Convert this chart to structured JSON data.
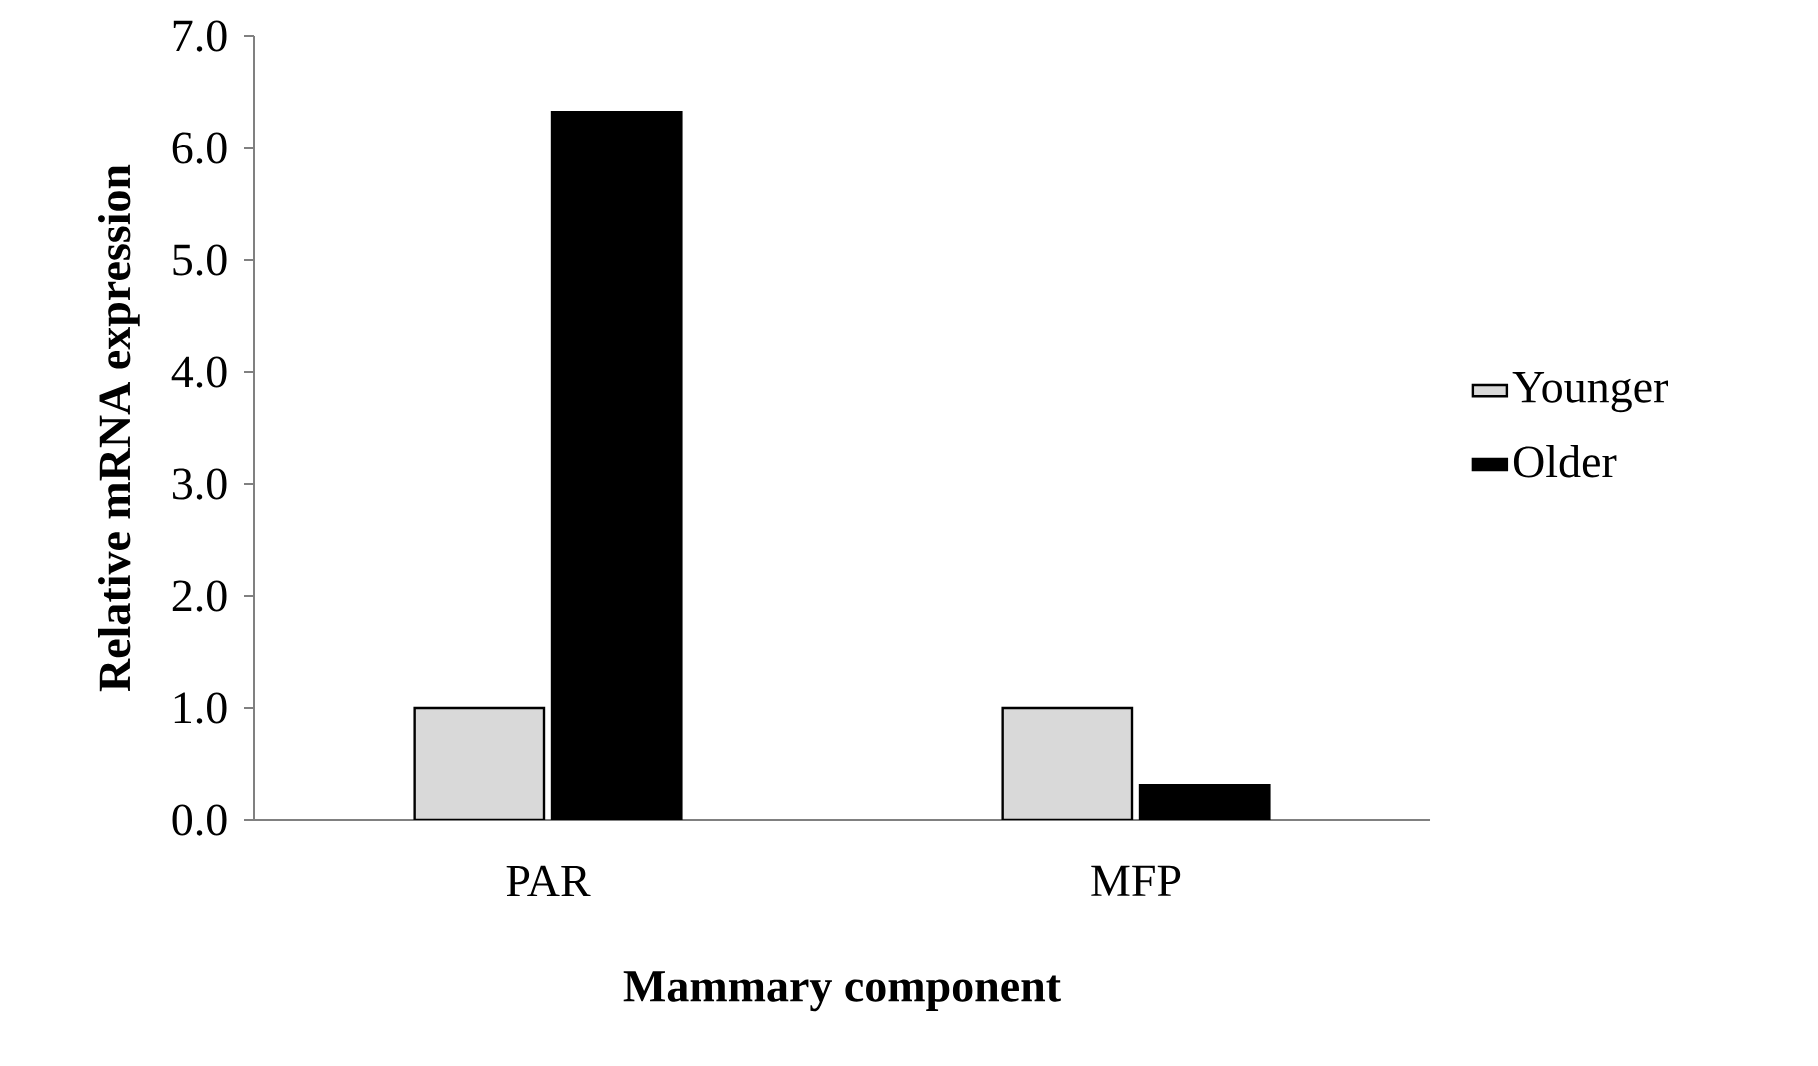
{
  "chart_data": {
    "type": "bar",
    "xlabel": "Mammary component",
    "ylabel": "Relative mRNA expression",
    "categories": [
      "PAR",
      "MFP"
    ],
    "series": [
      {
        "name": "Younger",
        "color": "#d9d9d9",
        "values": [
          1.0,
          1.0
        ]
      },
      {
        "name": "Older",
        "color": "#000000",
        "values": [
          6.32,
          0.31
        ]
      }
    ],
    "ylim": [
      0,
      7
    ],
    "yticks": [
      {
        "value": 0,
        "label": "0.0"
      },
      {
        "value": 1,
        "label": "1.0"
      },
      {
        "value": 2,
        "label": "2.0"
      },
      {
        "value": 3,
        "label": "3.0"
      },
      {
        "value": 4,
        "label": "4.0"
      },
      {
        "value": 5,
        "label": "5.0"
      },
      {
        "value": 6,
        "label": "6.0"
      },
      {
        "value": 7,
        "label": "7.0"
      }
    ],
    "legend": "right"
  }
}
